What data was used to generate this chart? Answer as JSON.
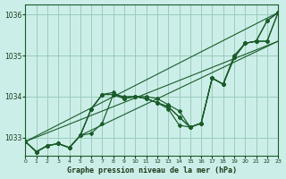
{
  "bg_color": "#cceee8",
  "grid_color": "#99ccbb",
  "line_color": "#1a5c2a",
  "text_color": "#1a3a1a",
  "xlabel": "Graphe pression niveau de la mer (hPa)",
  "ylim": [
    1032.55,
    1036.25
  ],
  "xlim": [
    0,
    23
  ],
  "yticks": [
    1033,
    1034,
    1035,
    1036
  ],
  "xticks": [
    0,
    1,
    2,
    3,
    4,
    5,
    6,
    7,
    8,
    9,
    10,
    11,
    12,
    13,
    14,
    15,
    16,
    17,
    18,
    19,
    20,
    21,
    22,
    23
  ],
  "series": [
    [
      1032.9,
      1032.65,
      1032.8,
      1032.85,
      1032.75,
      1033.05,
      1033.1,
      1033.35,
      1034.05,
      1034.0,
      1034.0,
      1034.0,
      1033.95,
      1033.8,
      1033.65,
      1033.25,
      1033.35,
      1034.45,
      1034.3,
      1034.95,
      1035.3,
      1035.35,
      1035.35,
      1036.05
    ],
    [
      1032.9,
      1032.65,
      1032.8,
      1032.85,
      1032.75,
      1033.05,
      1033.7,
      1034.05,
      1034.05,
      1033.95,
      1034.0,
      1033.95,
      1033.85,
      1033.75,
      1033.5,
      1033.25,
      1033.35,
      1034.45,
      1034.3,
      1034.95,
      1035.3,
      1035.35,
      1035.35,
      1036.05
    ],
    [
      1032.9,
      1032.65,
      1032.8,
      1032.85,
      1032.75,
      1033.05,
      1033.7,
      1034.05,
      1034.05,
      1033.95,
      1034.0,
      1033.95,
      1033.85,
      1033.75,
      1033.5,
      1033.25,
      1033.35,
      1034.45,
      1034.3,
      1034.95,
      1035.3,
      1035.35,
      1035.85,
      1036.05
    ],
    [
      1032.9,
      1032.65,
      1032.8,
      1032.85,
      1032.75,
      1033.05,
      1033.7,
      1034.05,
      1034.1,
      1033.95,
      1034.0,
      1033.95,
      1033.85,
      1033.7,
      1033.3,
      1033.25,
      1033.35,
      1034.45,
      1034.3,
      1035.0,
      1035.3,
      1035.35,
      1035.85,
      1036.05
    ]
  ],
  "straight_lines": [
    {
      "x0": 0,
      "y0": 1032.9,
      "x1": 23,
      "y1": 1036.05
    },
    {
      "x0": 0,
      "y0": 1032.9,
      "x1": 23,
      "y1": 1035.35
    },
    {
      "x0": 5,
      "y0": 1033.05,
      "x1": 23,
      "y1": 1035.35
    }
  ]
}
